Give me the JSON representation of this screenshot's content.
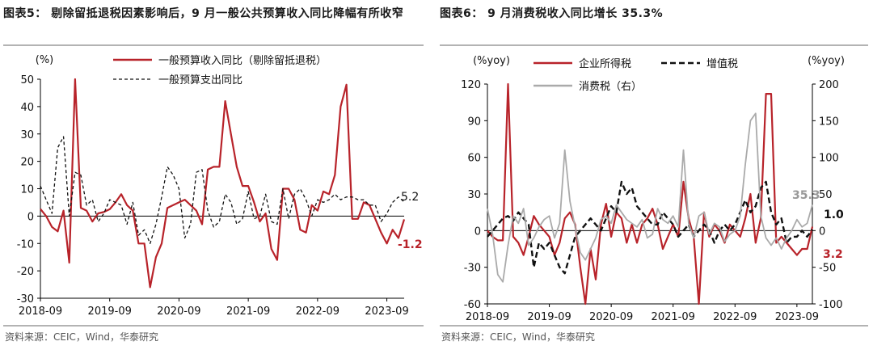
{
  "chart_data": [
    {
      "type": "line",
      "title": "图表5： 剔除留抵退税因素影响后，9 月一般公共预算收入同比降幅有所收窄",
      "ylabel": "(%)",
      "ylim": [
        -30,
        50
      ],
      "yticks": [
        "50",
        "40",
        "30",
        "20",
        "10",
        "0",
        "-10",
        "-20",
        "-30"
      ],
      "xticks": [
        "2018-09",
        "2019-09",
        "2020-09",
        "2021-09",
        "2022-09",
        "2023-09"
      ],
      "x_start": "2018-09",
      "x_end": "2023-09",
      "grid": false,
      "legend": "top",
      "source": "资料来源：CEIC，Wind，华泰研究",
      "series": [
        {
          "name": "一般预算收入同比（剔除留抵退税）",
          "color": "#b8232a",
          "style": "solid",
          "end_label": "-1.2",
          "values": [
            2.6,
            0,
            -4,
            -5.6,
            2,
            -17,
            50,
            3,
            2,
            -2,
            1,
            1.5,
            2.5,
            5,
            8,
            4,
            2,
            -10,
            -10,
            -26,
            -15,
            -10,
            3,
            4,
            5,
            6,
            4,
            2,
            -3,
            17,
            18,
            18,
            42,
            30,
            18,
            11,
            11,
            5,
            -2,
            1,
            -12,
            -16,
            10,
            10,
            6,
            -5,
            -6,
            4,
            2,
            9,
            8,
            15,
            40,
            48,
            -1,
            -1,
            5,
            4,
            -1,
            -6,
            -10,
            -5,
            -8,
            -1.2
          ]
        },
        {
          "name": "一般预算支出同比",
          "color": "#111111",
          "style": "dashed",
          "end_label": "5.2",
          "values": [
            11,
            6,
            1,
            25,
            29,
            0,
            16,
            15,
            4,
            6,
            -2,
            1,
            6,
            5,
            4,
            -3,
            5,
            -7,
            -5,
            -10,
            -3,
            7,
            18,
            15,
            10,
            -8,
            -3,
            16,
            17,
            2,
            -4,
            -2,
            8,
            5,
            -3,
            -1,
            9,
            -1,
            0,
            8,
            -2,
            -3,
            10,
            -1,
            8,
            10,
            6,
            0,
            6,
            5,
            6,
            8,
            6,
            7,
            7,
            6,
            6,
            4,
            4,
            -2,
            1,
            5,
            7,
            5.2
          ]
        }
      ]
    },
    {
      "type": "line",
      "title": "图表6： 9 月消费税收入同比增长 35.3%",
      "ylabel": "(%yoy)",
      "ylabel_right": "(%yoy)",
      "ylim": [
        -60,
        120
      ],
      "ylim_right": [
        -100,
        200
      ],
      "yticks": [
        "120",
        "90",
        "60",
        "30",
        "0",
        "-30",
        "-60"
      ],
      "yticks_right": [
        "200",
        "150",
        "100",
        "50",
        "0",
        "-50",
        "-100"
      ],
      "xticks": [
        "2018-09",
        "2019-09",
        "2020-09",
        "2021-09",
        "2022-09",
        "2023-09"
      ],
      "x_start": "2018-09",
      "x_end": "2023-09",
      "grid": false,
      "legend": "top",
      "source": "资料来源：CEIC，Wind，华泰研究",
      "series": [
        {
          "name": "企业所得税",
          "color": "#b8232a",
          "style": "solid",
          "axis": "left",
          "end_label": "3.2",
          "values": [
            0,
            -5,
            -8,
            -8,
            120,
            -5,
            -10,
            -20,
            -5,
            12,
            5,
            0,
            -5,
            -20,
            -10,
            10,
            15,
            5,
            -30,
            -60,
            -15,
            -40,
            5,
            22,
            -5,
            15,
            10,
            -10,
            5,
            -10,
            5,
            10,
            18,
            5,
            -15,
            -5,
            5,
            -5,
            40,
            10,
            -5,
            -60,
            15,
            -5,
            5,
            0,
            -10,
            5,
            0,
            -5,
            10,
            30,
            -10,
            10,
            112,
            112,
            -10,
            -5,
            -10,
            -15,
            -20,
            -15,
            -15,
            3.2
          ]
        },
        {
          "name": "增值税",
          "color": "#111111",
          "style": "dashed",
          "axis": "left",
          "end_label": "1.0",
          "values": [
            -5,
            0,
            5,
            10,
            12,
            8,
            15,
            10,
            5,
            -30,
            -10,
            -15,
            -10,
            -20,
            -30,
            -35,
            -20,
            -5,
            0,
            5,
            10,
            5,
            0,
            10,
            20,
            15,
            40,
            30,
            35,
            20,
            15,
            10,
            5,
            5,
            15,
            10,
            5,
            -5,
            0,
            5,
            -5,
            0,
            5,
            0,
            -10,
            0,
            5,
            0,
            5,
            15,
            25,
            15,
            20,
            35,
            40,
            15,
            5,
            10,
            -10,
            -5,
            -5,
            0,
            -5,
            1.0
          ]
        },
        {
          "name": "消费税（右）",
          "color": "#aaaaaa",
          "style": "solid",
          "axis": "right",
          "end_label": "35.3",
          "values": [
            30,
            -5,
            -60,
            -70,
            -20,
            20,
            10,
            30,
            -20,
            -10,
            5,
            15,
            20,
            -10,
            10,
            110,
            40,
            5,
            -30,
            -40,
            -25,
            -10,
            15,
            20,
            10,
            35,
            25,
            15,
            10,
            5,
            15,
            -10,
            -5,
            30,
            15,
            10,
            20,
            5,
            110,
            10,
            -10,
            20,
            25,
            -5,
            10,
            5,
            -15,
            -5,
            0,
            20,
            90,
            150,
            160,
            20,
            -10,
            -20,
            -10,
            -25,
            -10,
            0,
            15,
            5,
            10,
            35.3
          ]
        }
      ]
    }
  ]
}
